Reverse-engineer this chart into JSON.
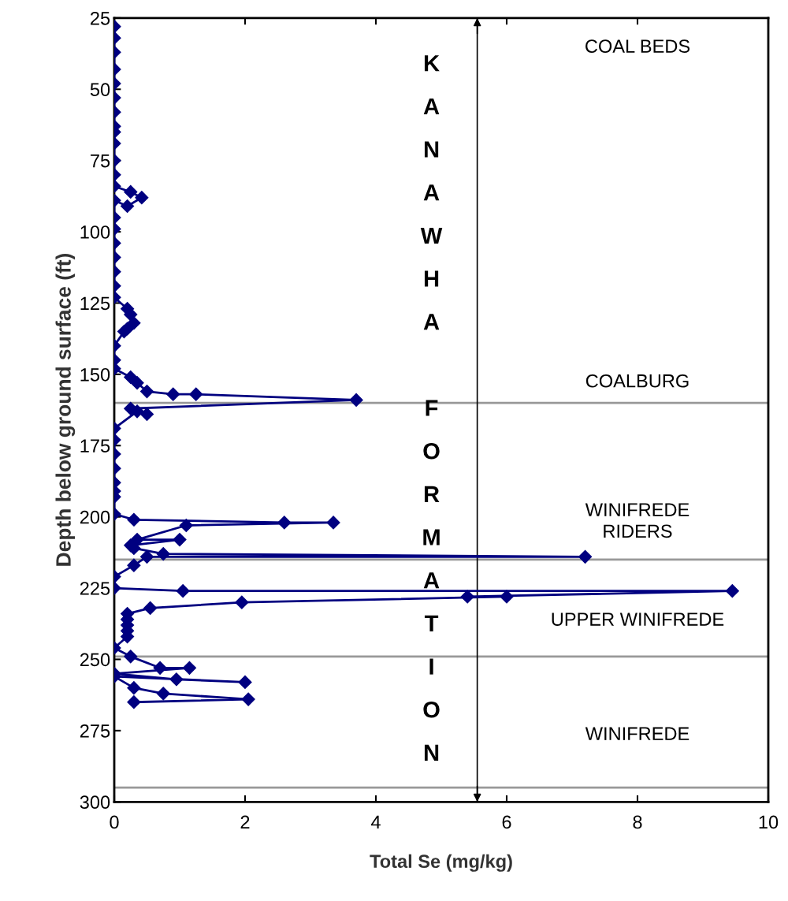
{
  "chart_data": {
    "type": "line",
    "xlabel": "Total Se (mg/kg)",
    "ylabel": "Depth below ground surface (ft)",
    "series": [
      {
        "color": "#000080",
        "x": [
          0,
          0,
          0,
          0,
          0,
          0,
          0,
          0,
          0,
          0,
          0,
          0,
          0,
          0.25,
          0.42,
          0.2,
          0,
          0,
          0,
          0,
          0,
          0,
          0,
          0,
          0.2,
          0.25,
          0.3,
          0.2,
          0.15,
          0,
          0,
          0,
          0.25,
          0.35,
          0.5,
          0.9,
          1.25,
          3.7,
          0.25,
          0.5,
          0.35,
          0,
          0,
          0,
          0,
          0,
          0,
          0,
          0,
          0.3,
          2.6,
          3.35,
          1.1,
          0.35,
          1.0,
          0.25,
          0.3,
          0.75,
          7.2,
          0.5,
          0.3,
          0,
          0,
          1.05,
          9.45,
          5.4,
          6.0,
          1.95,
          0.55,
          0.2,
          0.2,
          0.2,
          0.2,
          0.2,
          0,
          0.25,
          0.7,
          1.15,
          0,
          0.95,
          2.0,
          0,
          0.3,
          0.75,
          2.05,
          0.3
        ],
        "values": [
          28,
          32,
          37,
          43,
          48,
          53,
          58,
          63,
          65,
          69,
          75,
          80,
          84,
          86,
          88,
          91,
          89,
          95,
          99,
          104,
          109,
          114,
          119,
          123,
          127,
          129,
          132,
          134,
          135,
          140,
          145,
          148,
          151,
          153,
          156,
          157,
          157,
          159,
          162,
          164,
          163,
          169,
          173,
          178,
          183,
          188,
          191,
          193,
          199,
          201,
          202,
          202,
          203,
          208,
          208,
          210,
          211,
          213,
          214,
          214,
          217,
          221,
          225,
          226,
          226,
          228,
          228,
          230,
          232,
          234,
          236,
          238,
          240,
          242,
          246,
          249,
          253,
          253,
          255,
          257,
          258,
          256,
          260,
          262,
          264,
          265
        ]
      }
    ],
    "xlim": [
      0,
      10
    ],
    "xticks": [
      0,
      2,
      4,
      6,
      8,
      10
    ],
    "ylim": [
      300,
      25
    ],
    "yticks": [
      25,
      50,
      75,
      100,
      125,
      150,
      175,
      200,
      225,
      250,
      275,
      300
    ],
    "marker": "diamond",
    "line_style": "solid",
    "grid": false,
    "legend": false,
    "ref_lines": [
      {
        "axis": "y",
        "value": 160,
        "color": "#999999"
      },
      {
        "axis": "y",
        "value": 215,
        "color": "#999999"
      },
      {
        "axis": "y",
        "value": 249,
        "color": "#999999"
      },
      {
        "axis": "y",
        "value": 295,
        "color": "#999999"
      },
      {
        "axis": "x",
        "value": 5.55,
        "color": "#000000",
        "label": "KANAWHA FORMATION"
      }
    ],
    "annotations": [
      "COAL BEDS",
      "COALBURG",
      "WINIFREDE\nRIDERS",
      "UPPER WINIFREDE",
      "WINIFREDE"
    ]
  }
}
